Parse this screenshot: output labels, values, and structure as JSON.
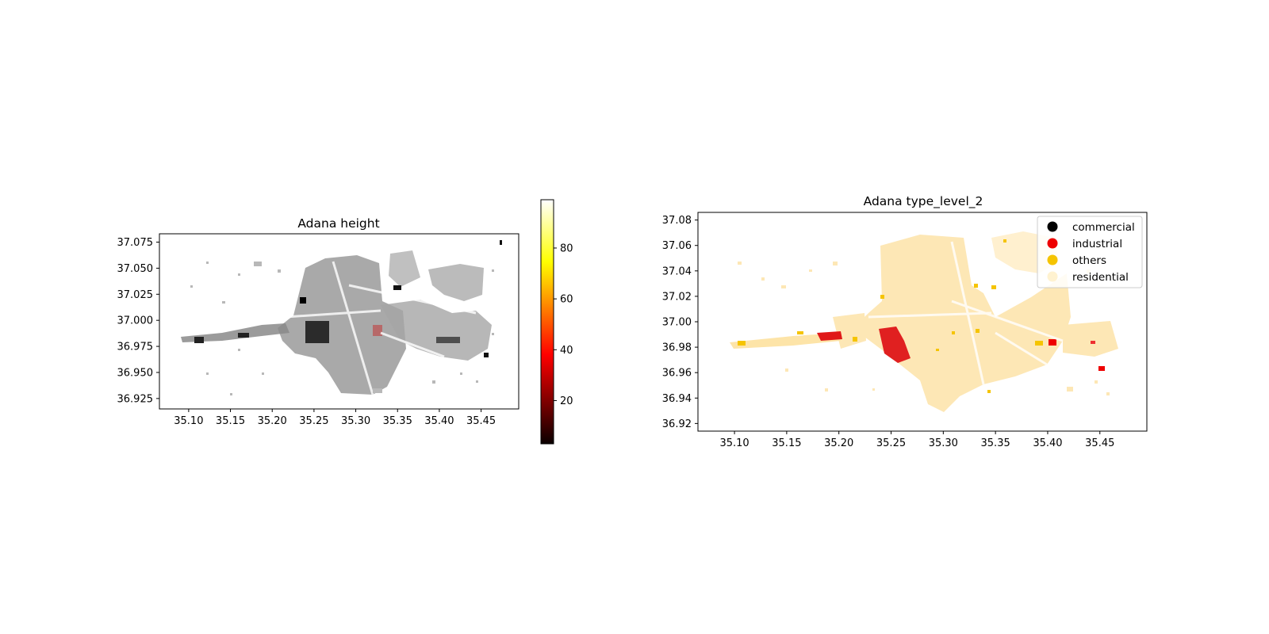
{
  "panels": [
    {
      "id": "height",
      "title": "Adana height",
      "x_ticks": [
        "35.10",
        "35.15",
        "35.20",
        "35.25",
        "35.30",
        "35.35",
        "35.40",
        "35.45"
      ],
      "y_ticks": [
        "37.075",
        "37.050",
        "37.025",
        "37.000",
        "36.975",
        "36.950",
        "36.925"
      ],
      "colorbar": {
        "colormap": "hot",
        "ticks": [
          "20",
          "40",
          "60",
          "80"
        ],
        "range": [
          3,
          99
        ]
      }
    },
    {
      "id": "type",
      "title": "Adana type_level_2",
      "x_ticks": [
        "35.10",
        "35.15",
        "35.20",
        "35.25",
        "35.30",
        "35.35",
        "35.40",
        "35.45"
      ],
      "y_ticks": [
        "37.08",
        "37.06",
        "37.04",
        "37.02",
        "37.00",
        "36.98",
        "36.96",
        "36.94",
        "36.92"
      ],
      "legend": {
        "placement": "top-right",
        "entries": [
          {
            "label": "commercial",
            "color": "#000000"
          },
          {
            "label": "industrial",
            "color": "#ee0000"
          },
          {
            "label": "others",
            "color": "#f5c400"
          },
          {
            "label": "residential",
            "color": "#fff2d0"
          }
        ]
      }
    }
  ],
  "chart_data": [
    {
      "type": "map",
      "title": "Adana height",
      "xlim": [
        35.065,
        35.495
      ],
      "ylim": [
        36.915,
        37.083
      ],
      "xticks": [
        35.1,
        35.15,
        35.2,
        35.25,
        35.3,
        35.35,
        35.4,
        35.45
      ],
      "yticks": [
        37.075,
        37.05,
        37.025,
        37.0,
        36.975,
        36.95,
        36.925
      ],
      "colorbar": {
        "min": 3,
        "max": 99,
        "ticks": [
          20,
          40,
          60,
          80
        ],
        "colormap": "hot"
      }
    },
    {
      "type": "map",
      "title": "Adana type_level_2",
      "xlim": [
        35.065,
        35.495
      ],
      "ylim": [
        36.914,
        37.086
      ],
      "xticks": [
        35.1,
        35.15,
        35.2,
        35.25,
        35.3,
        35.35,
        35.4,
        35.45
      ],
      "yticks": [
        37.08,
        37.06,
        37.04,
        37.02,
        37.0,
        36.98,
        36.96,
        36.94,
        36.92
      ],
      "categories": [
        "commercial",
        "industrial",
        "others",
        "residential"
      ]
    }
  ]
}
